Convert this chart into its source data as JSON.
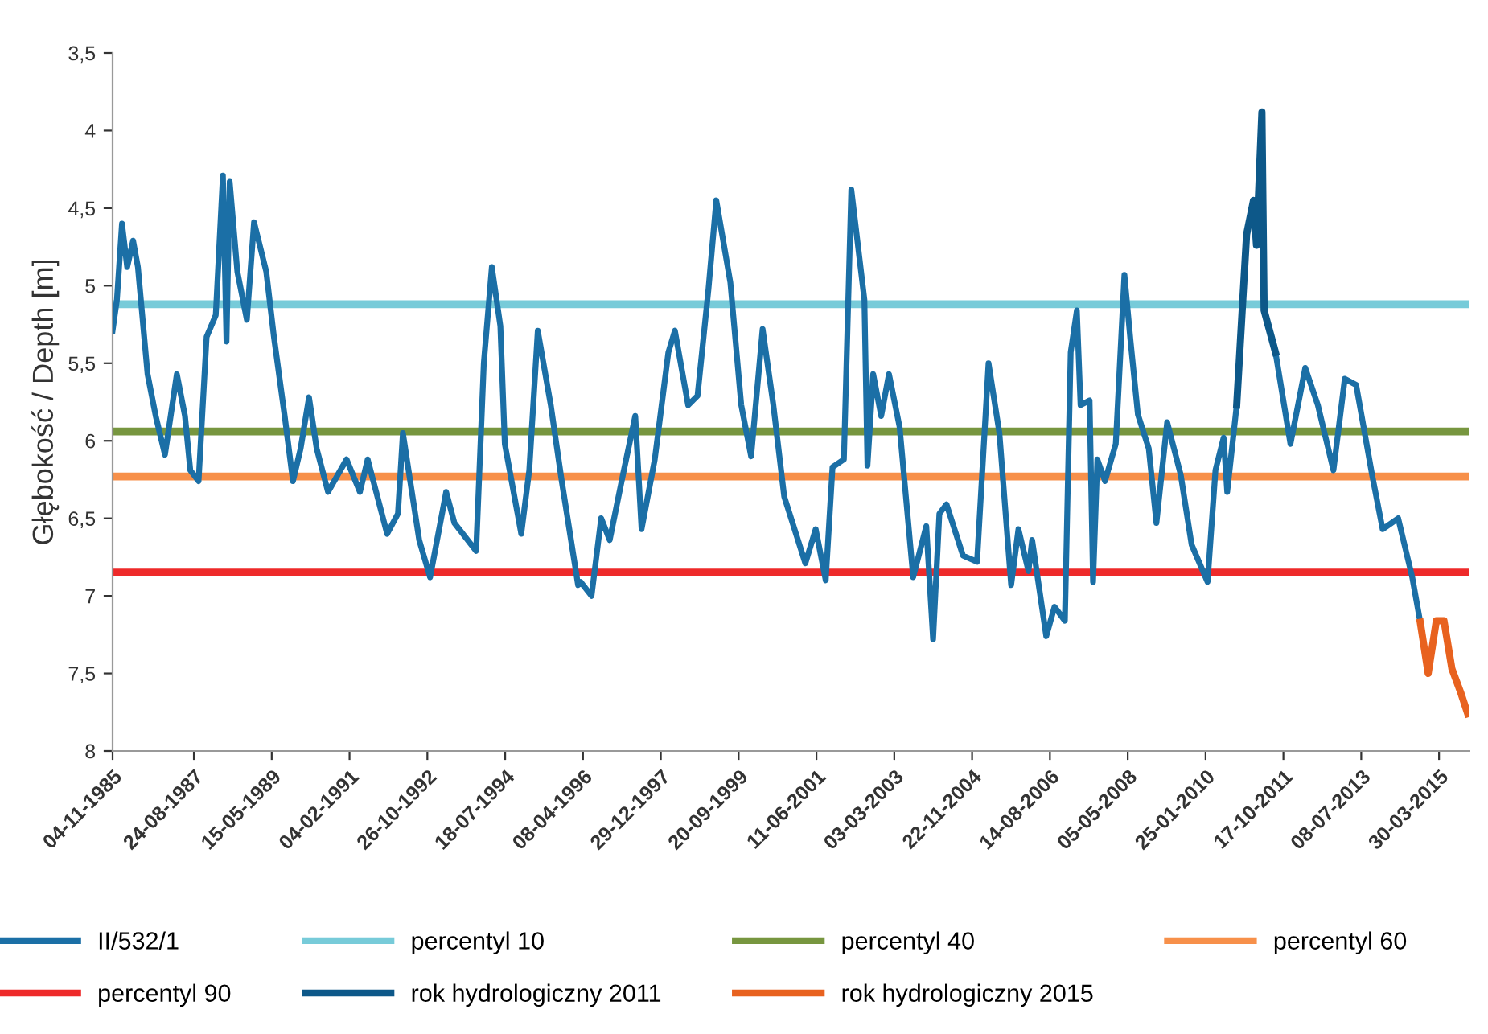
{
  "chart_data": {
    "type": "line",
    "ylabel": "Głębokość / Depth [m]",
    "ylim": [
      8,
      3.5
    ],
    "yticks": [
      {
        "value": 3.5,
        "label": "3,5"
      },
      4,
      {
        "value": 4.5,
        "label": "4,5"
      },
      5,
      {
        "value": 5.5,
        "label": "5,5"
      },
      6,
      {
        "value": 6.5,
        "label": "6,5"
      },
      7,
      {
        "value": 7.5,
        "label": "7,5"
      },
      8
    ],
    "xlim": [
      "1985-11-04",
      "2015-11-25"
    ],
    "xticks": [
      {
        "value": "1985-11-04",
        "label": "04-11-1985"
      },
      {
        "value": "1987-08-24",
        "label": "24-08-1987"
      },
      {
        "value": "1989-05-15",
        "label": "15-05-1989"
      },
      {
        "value": "1991-02-04",
        "label": "04-02-1991"
      },
      {
        "value": "1992-10-26",
        "label": "26-10-1992"
      },
      {
        "value": "1994-07-18",
        "label": "18-07-1994"
      },
      {
        "value": "1996-04-08",
        "label": "08-04-1996"
      },
      {
        "value": "1997-12-29",
        "label": "29-12-1997"
      },
      {
        "value": "1999-09-20",
        "label": "20-09-1999"
      },
      {
        "value": "2001-06-11",
        "label": "11-06-2001"
      },
      {
        "value": "2003-03-03",
        "label": "03-03-2003"
      },
      {
        "value": "2004-11-22",
        "label": "22-11-2004"
      },
      {
        "value": "2006-08-14",
        "label": "14-08-2006"
      },
      {
        "value": "2008-05-05",
        "label": "05-05-2008"
      },
      {
        "value": "2010-01-25",
        "label": "25-01-2010"
      },
      {
        "value": "2011-10-17",
        "label": "17-10-2011"
      },
      {
        "value": "2013-07-08",
        "label": "08-07-2013"
      },
      {
        "value": "2015-03-30",
        "label": "30-03-2015"
      }
    ],
    "grid": false,
    "legend": "bottom",
    "marker": "none",
    "line_style": "solid",
    "series": [
      {
        "name": "II/532/1",
        "color": "#1b6fa6",
        "x": [
          "1985-11-04",
          "1985-12-09",
          "1986-01-19",
          "1986-03-02",
          "1986-04-19",
          "1986-05-28",
          "1986-08-14",
          "1986-10-19",
          "1987-01-02",
          "1987-04-08",
          "1987-06-13",
          "1987-07-26",
          "1987-10-01",
          "1987-12-05",
          "1988-02-17",
          "1988-04-15",
          "1988-05-14",
          "1988-06-09",
          "1988-08-10",
          "1988-10-26",
          "1988-12-23",
          "1989-04-01",
          "1989-06-02",
          "1989-08-28",
          "1989-11-03",
          "1990-01-04",
          "1990-03-13",
          "1990-05-14",
          "1990-08-14",
          "1991-01-11",
          "1991-04-29",
          "1991-07-01",
          "1991-12-05",
          "1992-03-02",
          "1992-04-11",
          "1992-08-21",
          "1992-11-17",
          "1993-03-27",
          "1993-06-02",
          "1993-11-25",
          "1994-01-26",
          "1994-04-01",
          "1994-06-09",
          "1994-07-15",
          "1994-11-25",
          "1995-01-29",
          "1995-04-08",
          "1995-07-22",
          "1995-10-19",
          "1996-02-28",
          "1996-03-20",
          "1996-06-16",
          "1996-09-02",
          "1996-11-10",
          "1997-02-25",
          "1997-06-05",
          "1997-07-26",
          "1997-11-10",
          "1998-02-28",
          "1998-04-22",
          "1998-08-07",
          "1998-10-22",
          "1999-01-19",
          "1999-03-23",
          "1999-07-15",
          "1999-10-11",
          "1999-12-30",
          "2000-04-01",
          "2000-06-27",
          "2000-09-23",
          "2001-03-13",
          "2001-06-05",
          "2001-08-25",
          "2001-10-19",
          "2002-01-19",
          "2002-03-20",
          "2002-07-04",
          "2002-07-29",
          "2002-09-13",
          "2002-11-17",
          "2003-01-19",
          "2003-04-15",
          "2003-08-03",
          "2003-11-17",
          "2004-01-11",
          "2004-03-02",
          "2004-04-29",
          "2004-09-09",
          "2005-01-01",
          "2005-04-04",
          "2005-07-01",
          "2005-10-04",
          "2005-12-02",
          "2006-02-21",
          "2006-03-23",
          "2006-07-15",
          "2006-09-20",
          "2006-12-13",
          "2007-01-29",
          "2007-03-20",
          "2007-04-19",
          "2007-07-01",
          "2007-07-29",
          "2007-09-02",
          "2007-11-03",
          "2008-01-29",
          "2008-04-08",
          "2008-05-28",
          "2008-07-26",
          "2008-10-22",
          "2008-12-23",
          "2009-03-20",
          "2009-07-08",
          "2009-10-04",
          "2010-02-10",
          "2010-04-15",
          "2010-06-20",
          "2010-07-19",
          "2010-10-04",
          "2010-12-23",
          "2011-02-17",
          "2011-03-13",
          "2011-04-26",
          "2011-05-14",
          "2011-08-14",
          "2011-12-13",
          "2012-04-11",
          "2012-07-22",
          "2012-11-25",
          "2013-02-25",
          "2013-05-28",
          "2013-10-04",
          "2013-12-28",
          "2014-05-03",
          "2014-08-25",
          "2014-10-29"
        ],
        "values": [
          5.29,
          5.09,
          4.6,
          4.88,
          4.71,
          4.88,
          5.57,
          5.84,
          6.09,
          5.57,
          5.84,
          6.19,
          6.26,
          5.33,
          5.19,
          4.29,
          5.36,
          4.33,
          4.91,
          5.22,
          4.59,
          4.91,
          5.33,
          5.84,
          6.26,
          6.05,
          5.72,
          6.05,
          6.33,
          6.12,
          6.33,
          6.12,
          6.6,
          6.47,
          5.95,
          6.64,
          6.88,
          6.33,
          6.53,
          6.71,
          5.5,
          4.88,
          5.26,
          6.02,
          6.6,
          6.19,
          5.29,
          5.77,
          6.26,
          6.93,
          6.91,
          7.0,
          6.5,
          6.64,
          6.22,
          5.84,
          6.57,
          6.12,
          5.43,
          5.29,
          5.77,
          5.71,
          5.02,
          4.45,
          4.98,
          5.77,
          6.1,
          5.28,
          5.77,
          6.36,
          6.79,
          6.57,
          6.9,
          6.17,
          6.12,
          4.38,
          5.09,
          6.16,
          5.57,
          5.84,
          5.57,
          5.91,
          6.88,
          6.55,
          7.28,
          6.47,
          6.41,
          6.74,
          6.78,
          5.5,
          5.95,
          6.93,
          6.57,
          6.84,
          6.64,
          7.26,
          7.07,
          7.16,
          5.43,
          5.16,
          5.77,
          5.74,
          6.91,
          6.12,
          6.26,
          6.02,
          4.93,
          5.36,
          5.83,
          6.05,
          6.53,
          5.88,
          6.22,
          6.67,
          6.91,
          6.19,
          5.98,
          6.33,
          5.77,
          4.67,
          4.45,
          4.74,
          3.88,
          5.16,
          5.43,
          6.02,
          5.53,
          5.77,
          6.19,
          5.6,
          5.64,
          6.22,
          6.57,
          6.5,
          6.88,
          7.17
        ]
      },
      {
        "name": "rok hydrologiczny 2011",
        "color": "#0d5889",
        "x": [
          "2010-10-04",
          "2010-12-23",
          "2011-02-17",
          "2011-03-13",
          "2011-04-26",
          "2011-05-14",
          "2011-08-14"
        ],
        "values": [
          5.77,
          4.67,
          4.45,
          4.74,
          3.88,
          5.16,
          5.43
        ]
      },
      {
        "name": "rok hydrologiczny 2015",
        "color": "#e8621f",
        "x": [
          "2014-10-29",
          "2015-01-01",
          "2015-03-08",
          "2015-05-09",
          "2015-07-12",
          "2015-09-20",
          "2015-11-17"
        ],
        "values": [
          7.17,
          7.5,
          7.16,
          7.16,
          7.47,
          7.62,
          7.76
        ]
      }
    ],
    "ref_lines": [
      {
        "axis": "y",
        "value": 5.12,
        "label": "percentyl 10",
        "color": "#77cbd9"
      },
      {
        "axis": "y",
        "value": 5.94,
        "label": "percentyl 40",
        "color": "#77963f"
      },
      {
        "axis": "y",
        "value": 6.23,
        "label": "percentyl 60",
        "color": "#f7904a"
      },
      {
        "axis": "y",
        "value": 6.85,
        "label": "percentyl 90",
        "color": "#ee2a2a"
      }
    ]
  }
}
